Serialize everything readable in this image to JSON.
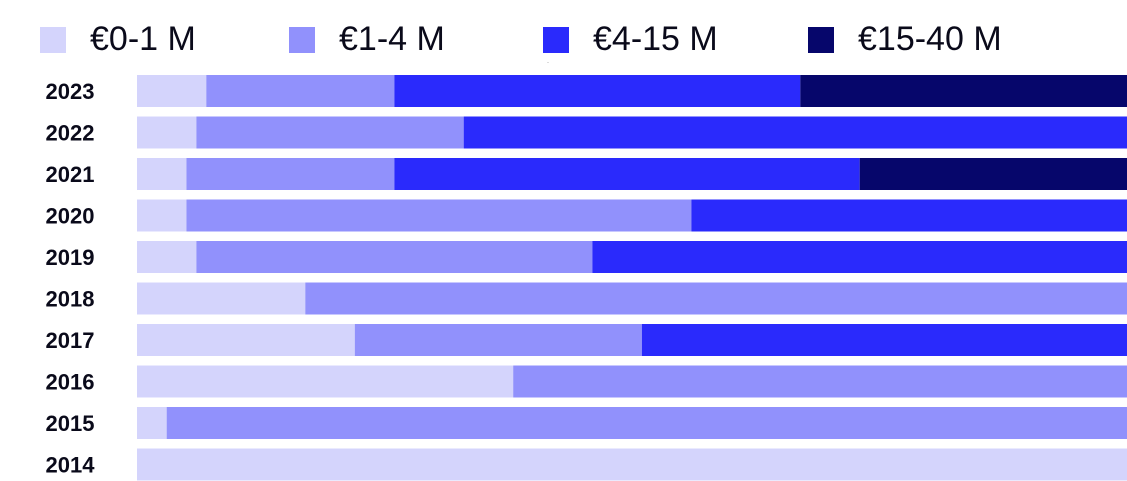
{
  "chart_data": {
    "type": "stacked-bar-horizontal",
    "categories": [
      "2023",
      "2022",
      "2021",
      "2020",
      "2019",
      "2018",
      "2017",
      "2016",
      "2015",
      "2014"
    ],
    "series": [
      {
        "name": "€0-1 M",
        "color": "#d4d4fc",
        "values": [
          7,
          6,
          5,
          5,
          6,
          17,
          22,
          38,
          3,
          100
        ]
      },
      {
        "name": "€1-4 M",
        "color": "#9191fc",
        "values": [
          19,
          27,
          21,
          51,
          40,
          83,
          29,
          62,
          97,
          0
        ]
      },
      {
        "name": "€4-15 M",
        "color": "#2a2afc",
        "values": [
          41,
          67,
          47,
          44,
          54,
          0,
          49,
          0,
          0,
          0
        ]
      },
      {
        "name": "€15-40 M",
        "color": "#06066b",
        "values": [
          33,
          0,
          27,
          0,
          0,
          0,
          0,
          0,
          0,
          0
        ]
      }
    ],
    "xlim": [
      0,
      100
    ]
  }
}
